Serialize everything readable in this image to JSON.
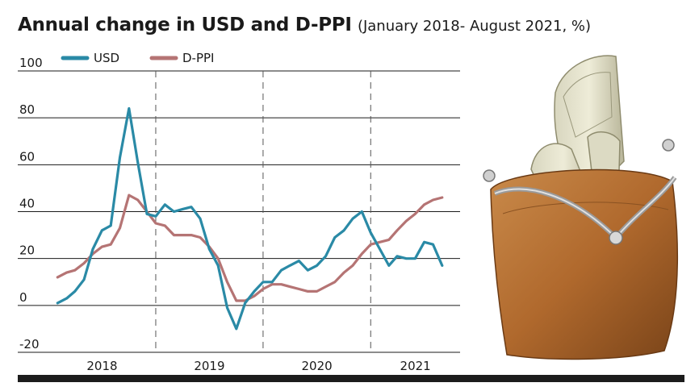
{
  "title": "Annual change in USD and D-PPI",
  "subtitle": "(January 2018- August 2021, %)",
  "colors": {
    "usd": "#2a8aa6",
    "dppi": "#b57474",
    "grid": "#1a1a1a",
    "bar": "#1c1c1c"
  },
  "illustration": "coin-purse-with-dollar-bills",
  "chart_data": {
    "type": "line",
    "y_ticks": [
      "100",
      "80",
      "60",
      "40",
      "20",
      "0",
      "-20"
    ],
    "ylim": [
      -20,
      100
    ],
    "x_range": [
      "2017-12-01",
      "2021-10-01"
    ],
    "year_labels": [
      "2018",
      "2019",
      "2020",
      "2021"
    ],
    "year_separators": [
      "2018-12-01",
      "2019-12-01",
      "2020-12-01"
    ],
    "grid": "horizontal",
    "legend_position": "top-left",
    "series": [
      {
        "name": "USD",
        "color": "#2a8aa6",
        "points": [
          {
            "x": "2018-01",
            "y": 1
          },
          {
            "x": "2018-02",
            "y": 3
          },
          {
            "x": "2018-03",
            "y": 6
          },
          {
            "x": "2018-04",
            "y": 11
          },
          {
            "x": "2018-05",
            "y": 24
          },
          {
            "x": "2018-06",
            "y": 32
          },
          {
            "x": "2018-07",
            "y": 34
          },
          {
            "x": "2018-08",
            "y": 63
          },
          {
            "x": "2018-09",
            "y": 84
          },
          {
            "x": "2018-10",
            "y": 61
          },
          {
            "x": "2018-11",
            "y": 39
          },
          {
            "x": "2018-12",
            "y": 38
          },
          {
            "x": "2019-01",
            "y": 43
          },
          {
            "x": "2019-02",
            "y": 40
          },
          {
            "x": "2019-03",
            "y": 41
          },
          {
            "x": "2019-04",
            "y": 42
          },
          {
            "x": "2019-05",
            "y": 37
          },
          {
            "x": "2019-06",
            "y": 24
          },
          {
            "x": "2019-07",
            "y": 17
          },
          {
            "x": "2019-08",
            "y": -1
          },
          {
            "x": "2019-09",
            "y": -10
          },
          {
            "x": "2019-10",
            "y": 1
          },
          {
            "x": "2019-11",
            "y": 6
          },
          {
            "x": "2019-12",
            "y": 10
          },
          {
            "x": "2020-01",
            "y": 10
          },
          {
            "x": "2020-02",
            "y": 15
          },
          {
            "x": "2020-03",
            "y": 17
          },
          {
            "x": "2020-04",
            "y": 19
          },
          {
            "x": "2020-05",
            "y": 15
          },
          {
            "x": "2020-06",
            "y": 17
          },
          {
            "x": "2020-07",
            "y": 21
          },
          {
            "x": "2020-08",
            "y": 29
          },
          {
            "x": "2020-09",
            "y": 32
          },
          {
            "x": "2020-10",
            "y": 37
          },
          {
            "x": "2020-11",
            "y": 40
          },
          {
            "x": "2020-12",
            "y": 31
          },
          {
            "x": "2021-01",
            "y": 24
          },
          {
            "x": "2021-02",
            "y": 17
          },
          {
            "x": "2021-03",
            "y": 21
          },
          {
            "x": "2021-04",
            "y": 20
          },
          {
            "x": "2021-05",
            "y": 20
          },
          {
            "x": "2021-06",
            "y": 27
          },
          {
            "x": "2021-07",
            "y": 26
          },
          {
            "x": "2021-08",
            "y": 17
          }
        ]
      },
      {
        "name": "D-PPI",
        "color": "#b57474",
        "points": [
          {
            "x": "2018-01",
            "y": 12
          },
          {
            "x": "2018-02",
            "y": 14
          },
          {
            "x": "2018-03",
            "y": 15
          },
          {
            "x": "2018-04",
            "y": 18
          },
          {
            "x": "2018-05",
            "y": 22
          },
          {
            "x": "2018-06",
            "y": 25
          },
          {
            "x": "2018-07",
            "y": 26
          },
          {
            "x": "2018-08",
            "y": 33
          },
          {
            "x": "2018-09",
            "y": 47
          },
          {
            "x": "2018-10",
            "y": 45
          },
          {
            "x": "2018-11",
            "y": 40
          },
          {
            "x": "2018-12",
            "y": 35
          },
          {
            "x": "2019-01",
            "y": 34
          },
          {
            "x": "2019-02",
            "y": 30
          },
          {
            "x": "2019-03",
            "y": 30
          },
          {
            "x": "2019-04",
            "y": 30
          },
          {
            "x": "2019-05",
            "y": 29
          },
          {
            "x": "2019-06",
            "y": 25
          },
          {
            "x": "2019-07",
            "y": 20
          },
          {
            "x": "2019-08",
            "y": 10
          },
          {
            "x": "2019-09",
            "y": 2
          },
          {
            "x": "2019-10",
            "y": 2
          },
          {
            "x": "2019-11",
            "y": 4
          },
          {
            "x": "2019-12",
            "y": 7
          },
          {
            "x": "2020-01",
            "y": 9
          },
          {
            "x": "2020-02",
            "y": 9
          },
          {
            "x": "2020-03",
            "y": 8
          },
          {
            "x": "2020-04",
            "y": 7
          },
          {
            "x": "2020-05",
            "y": 6
          },
          {
            "x": "2020-06",
            "y": 6
          },
          {
            "x": "2020-07",
            "y": 8
          },
          {
            "x": "2020-08",
            "y": 10
          },
          {
            "x": "2020-09",
            "y": 14
          },
          {
            "x": "2020-10",
            "y": 17
          },
          {
            "x": "2020-11",
            "y": 22
          },
          {
            "x": "2020-12",
            "y": 26
          },
          {
            "x": "2021-01",
            "y": 27
          },
          {
            "x": "2021-02",
            "y": 28
          },
          {
            "x": "2021-03",
            "y": 32
          },
          {
            "x": "2021-04",
            "y": 36
          },
          {
            "x": "2021-05",
            "y": 39
          },
          {
            "x": "2021-06",
            "y": 43
          },
          {
            "x": "2021-07",
            "y": 45
          },
          {
            "x": "2021-08",
            "y": 46
          }
        ]
      }
    ]
  }
}
